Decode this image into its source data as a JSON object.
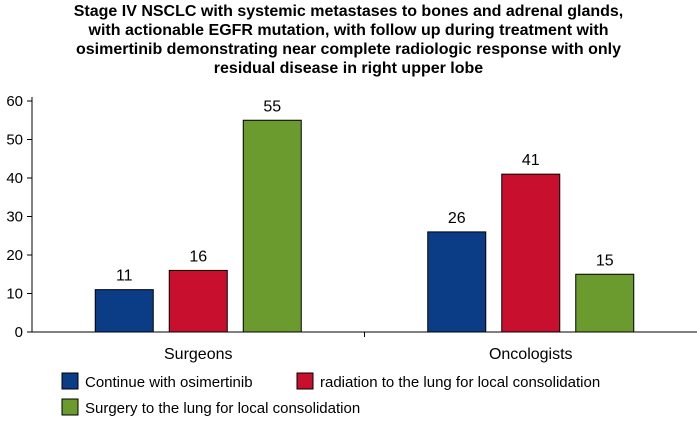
{
  "chart_data": {
    "type": "bar",
    "title_lines": [
      "Stage IV NSCLC with systemic metastases to bones and adrenal glands,",
      "with actionable EGFR mutation, with follow up during treatment with",
      "osimertinib demonstrating near complete radiologic response with only",
      "residual disease in right upper lobe"
    ],
    "categories": [
      "Surgeons",
      "Oncologists"
    ],
    "series": [
      {
        "name": "Continue with osimertinib",
        "color": "#0b3d86",
        "values": [
          11,
          26
        ]
      },
      {
        "name": "radiation to the lung for local consolidation",
        "color": "#c8102e",
        "values": [
          16,
          41
        ]
      },
      {
        "name": "Surgery to the lung for local consolidation",
        "color": "#6b9a2e",
        "values": [
          55,
          15
        ]
      }
    ],
    "ylim": [
      0,
      60
    ],
    "yticks": [
      0,
      10,
      20,
      30,
      40,
      50,
      60
    ],
    "xlabel": "",
    "ylabel": "",
    "grid": false,
    "legend_position": "bottom"
  }
}
